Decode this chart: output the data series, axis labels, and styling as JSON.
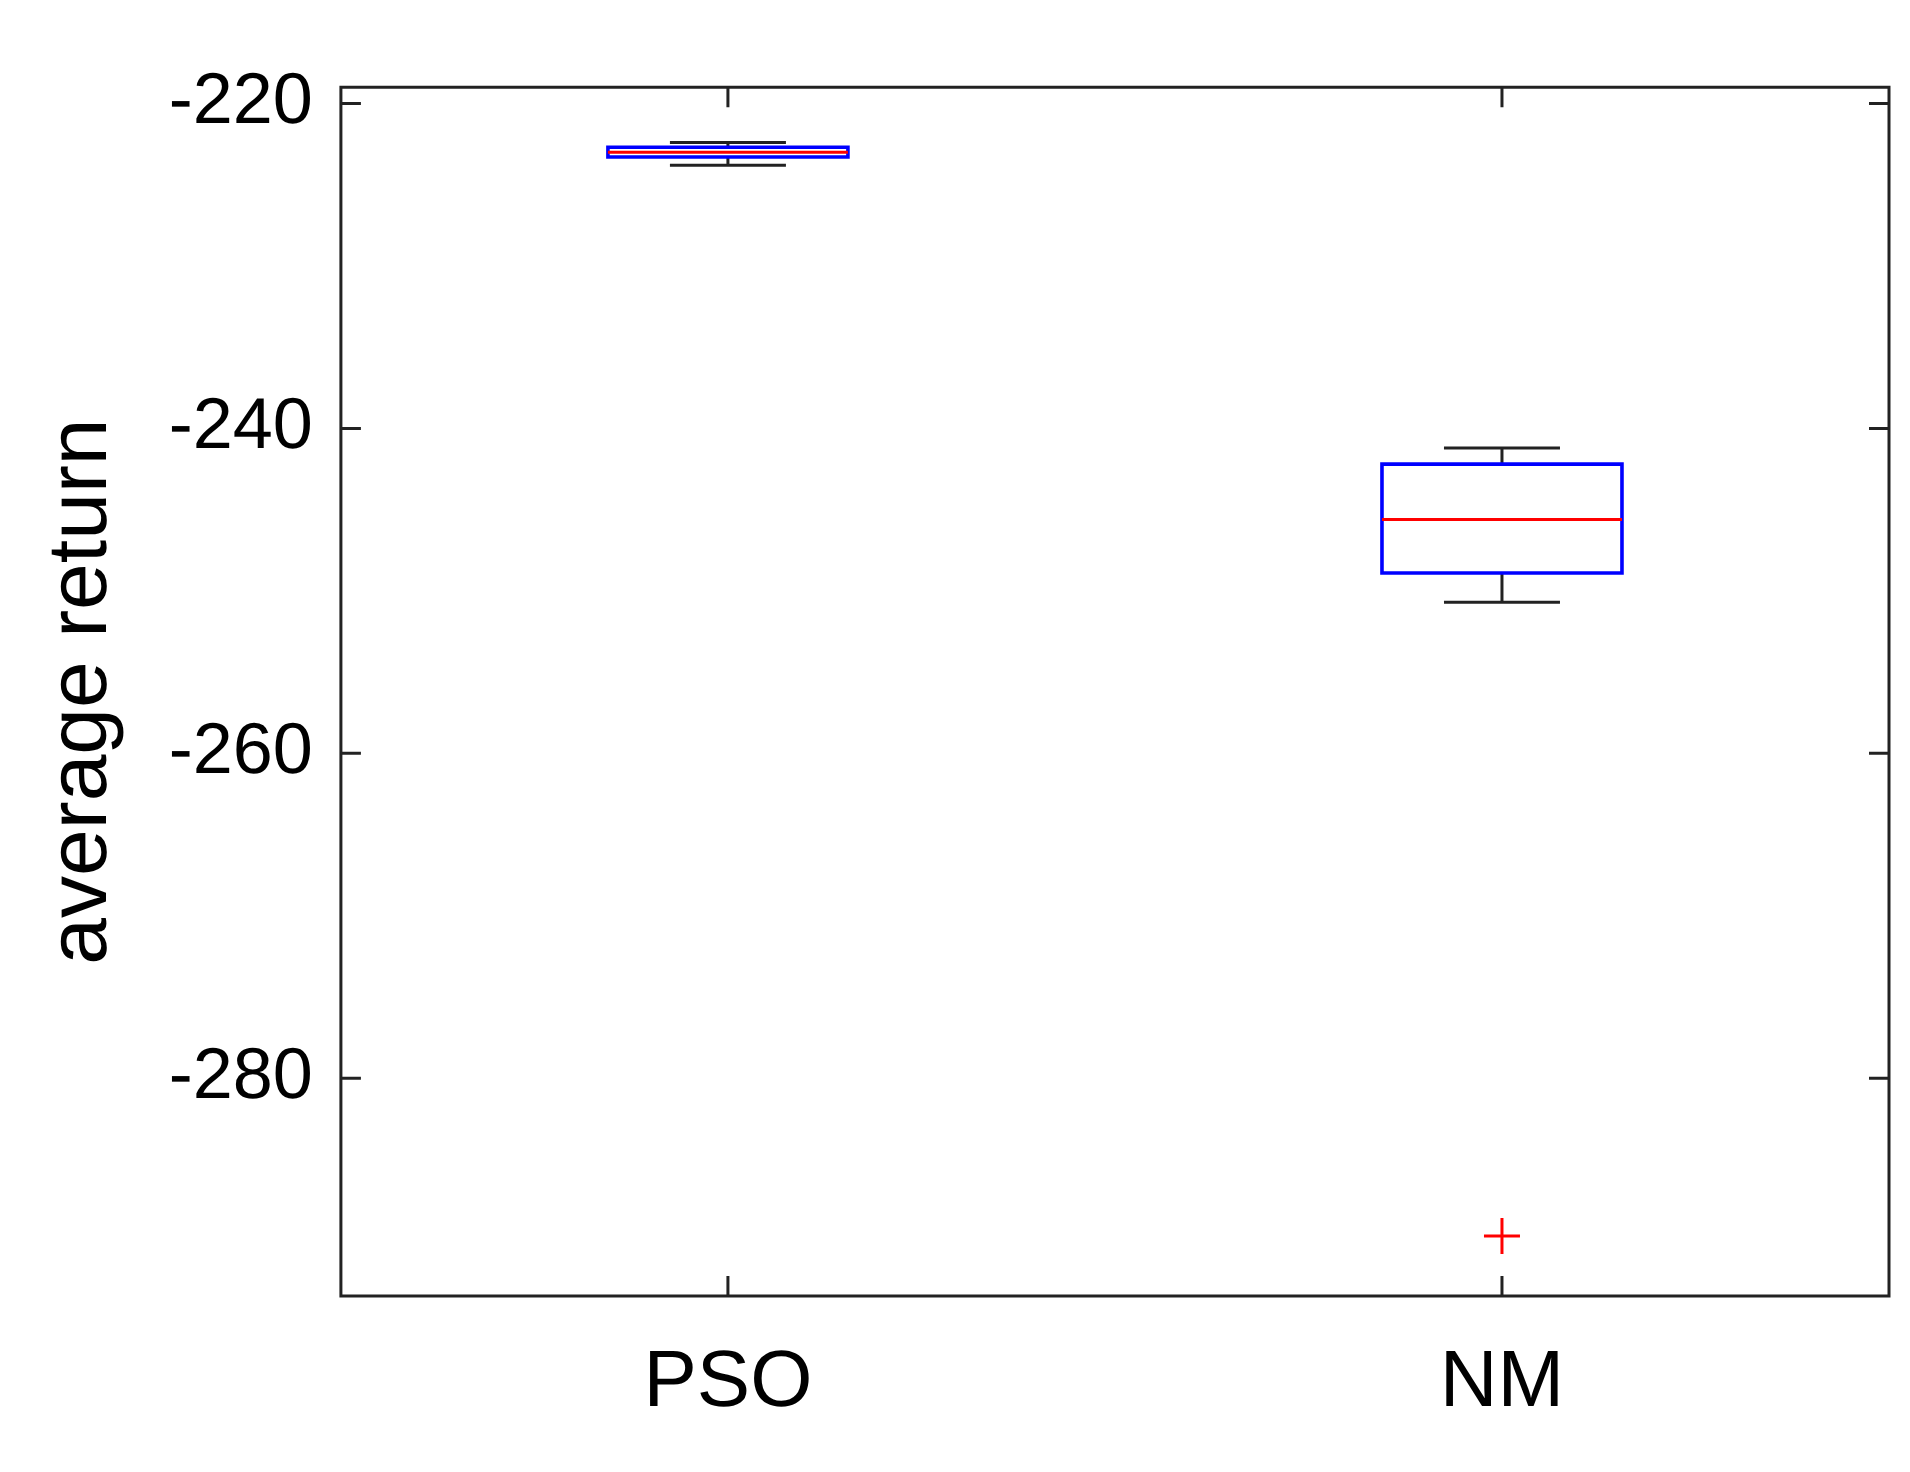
{
  "chart_data": {
    "type": "box",
    "ylabel": "average return",
    "categories": [
      "PSO",
      "NM"
    ],
    "series": [
      {
        "color": "#0000ff",
        "boxes": [
          {
            "low": -223.8,
            "q1": -223.3,
            "median": -223.0,
            "q3": -222.7,
            "high": -222.4
          },
          {
            "low": -250.7,
            "q1": -248.9,
            "median": -245.6,
            "q3": -242.2,
            "high": -241.2,
            "outliers": [
              -289.7
            ]
          }
        ]
      }
    ],
    "ylim": [
      -293.4,
      -219.0
    ],
    "yticks": [
      -220,
      -240,
      -260,
      -280
    ],
    "grid": false,
    "marker": "cross"
  }
}
